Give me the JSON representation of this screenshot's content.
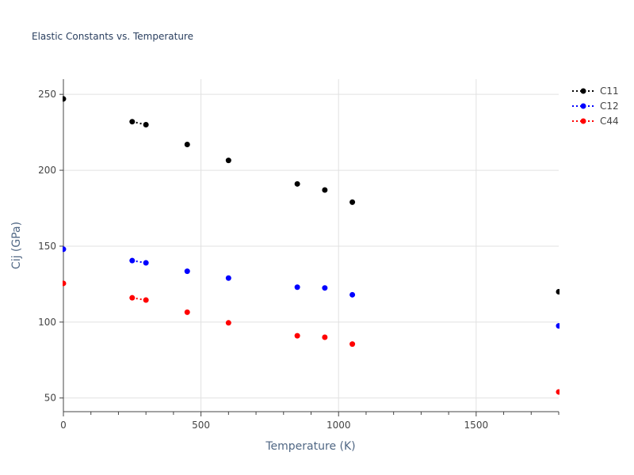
{
  "chart_data": {
    "type": "scatter",
    "title": "Elastic Constants vs. Temperature",
    "xlabel": "Temperature (K)",
    "ylabel": "Cij (GPa)",
    "xlim": [
      0,
      1800
    ],
    "ylim": [
      41,
      260
    ],
    "x_ticks": [
      0,
      500,
      1000,
      1500
    ],
    "y_ticks": [
      50,
      100,
      150,
      200,
      250
    ],
    "x_minor_step": 100,
    "grid": true,
    "legend_position": "top-right",
    "x": [
      0,
      250,
      300,
      450,
      600,
      850,
      950,
      1050,
      1800
    ],
    "series": [
      {
        "name": "C11",
        "color": "#000000",
        "values": [
          247,
          232,
          230,
          217,
          206.5,
          191,
          187,
          179,
          120
        ]
      },
      {
        "name": "C12",
        "color": "#0000ff",
        "values": [
          148,
          140.5,
          139,
          133.5,
          129,
          123,
          122.5,
          118,
          97.5
        ]
      },
      {
        "name": "C44",
        "color": "#ff0000",
        "values": [
          125.5,
          116,
          114.5,
          106.5,
          99.5,
          91,
          90,
          85.5,
          54
        ]
      }
    ],
    "dotted_segment": [
      0,
      1
    ]
  }
}
